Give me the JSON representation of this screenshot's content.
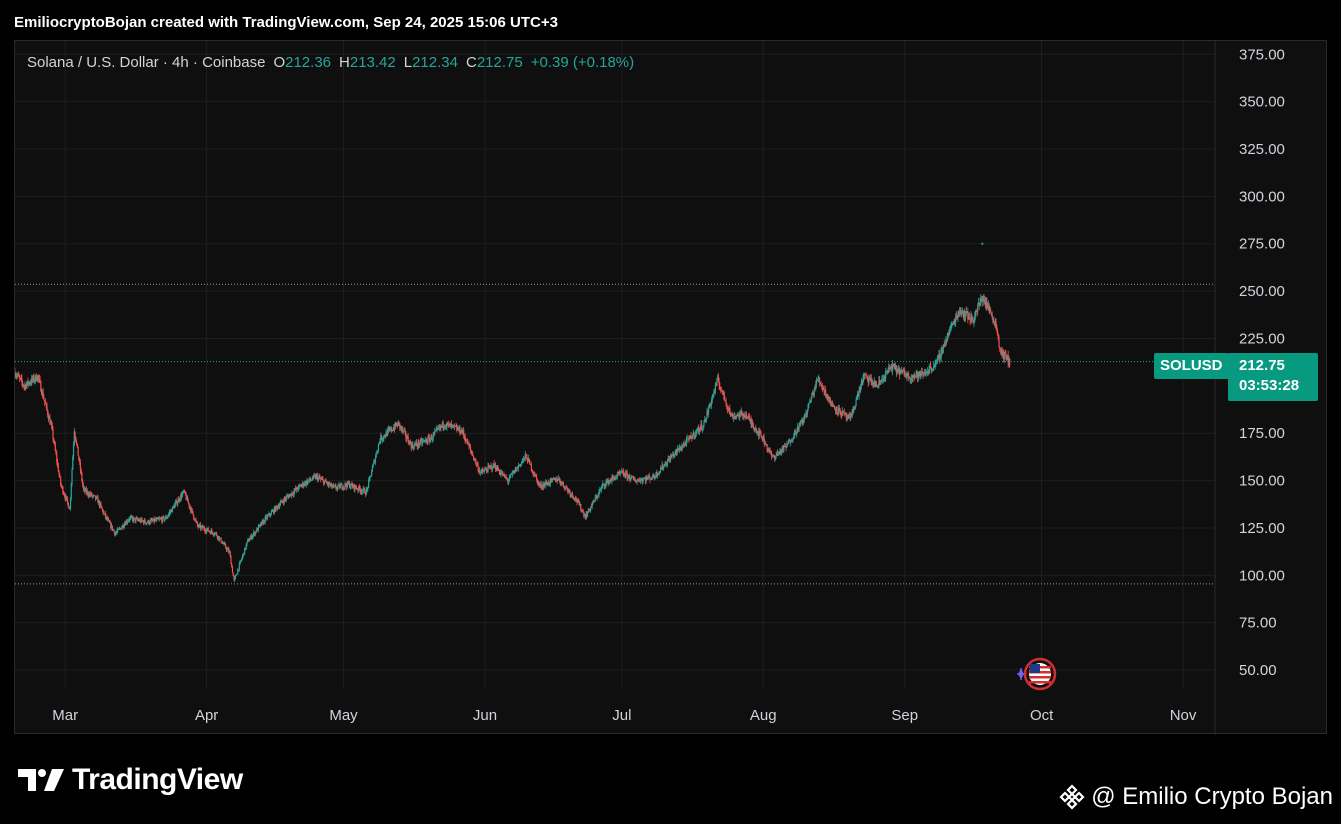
{
  "header": {
    "caption": "EmiliocryptoBojan created with TradingView.com, Sep 24, 2025 15:06 UTC+3"
  },
  "legend": {
    "symbol": "Solana / U.S. Dollar · 4h · Coinbase",
    "open_label": "O",
    "open": "212.36",
    "high_label": "H",
    "high": "213.42",
    "low_label": "L",
    "low": "212.34",
    "close_label": "C",
    "close": "212.75",
    "change": "+0.39 (+0.18%)"
  },
  "price_tag": {
    "symbol": "SOLUSD",
    "price": "212.75",
    "countdown": "03:53:28"
  },
  "footer": {
    "brand": "TradingView",
    "watermark": "@ Emilio Crypto Bojan"
  },
  "colors": {
    "up": "#26a69a",
    "down": "#ef5350",
    "background": "#0f0f0f",
    "grid": "#1e1e1e",
    "tag": "#089981"
  },
  "icons": {
    "brand_logo": "tradingview-logo-icon",
    "watermark_logo": "binance-logo-icon",
    "event": "us-flag-event-icon"
  },
  "chart_data": {
    "type": "candlestick",
    "interval": "4h",
    "ylim": [
      40,
      382
    ],
    "y_ticks": [
      "375.00",
      "350.00",
      "325.00",
      "300.00",
      "275.00",
      "250.00",
      "225.00",
      "175.00",
      "150.00",
      "125.00",
      "100.00",
      "75.00",
      "50.00"
    ],
    "x_ticks": [
      "Mar",
      "Apr",
      "May",
      "Jun",
      "Jul",
      "Aug",
      "Sep",
      "Oct",
      "Nov"
    ],
    "x_range": [
      "2025-02-18",
      "2025-11-08"
    ],
    "grid": true,
    "last_price": 212.75,
    "horizontal_lines": [
      253.6,
      95.5,
      212.75
    ],
    "approx_path": [
      [
        "2025-02-18",
        207
      ],
      [
        "2025-02-20",
        200
      ],
      [
        "2025-02-23",
        205
      ],
      [
        "2025-02-26",
        178
      ],
      [
        "2025-02-28",
        148
      ],
      [
        "2025-03-02",
        135
      ],
      [
        "2025-03-03",
        177
      ],
      [
        "2025-03-05",
        145
      ],
      [
        "2025-03-08",
        140
      ],
      [
        "2025-03-10",
        130
      ],
      [
        "2025-03-12",
        122
      ],
      [
        "2025-03-15",
        130
      ],
      [
        "2025-03-19",
        128
      ],
      [
        "2025-03-23",
        130
      ],
      [
        "2025-03-27",
        144
      ],
      [
        "2025-03-30",
        126
      ],
      [
        "2025-04-03",
        122
      ],
      [
        "2025-04-06",
        112
      ],
      [
        "2025-04-07",
        97
      ],
      [
        "2025-04-10",
        118
      ],
      [
        "2025-04-14",
        130
      ],
      [
        "2025-04-18",
        140
      ],
      [
        "2025-04-22",
        148
      ],
      [
        "2025-04-25",
        152
      ],
      [
        "2025-04-29",
        146
      ],
      [
        "2025-05-02",
        148
      ],
      [
        "2025-05-06",
        144
      ],
      [
        "2025-05-09",
        172
      ],
      [
        "2025-05-13",
        180
      ],
      [
        "2025-05-16",
        168
      ],
      [
        "2025-05-20",
        172
      ],
      [
        "2025-05-23",
        180
      ],
      [
        "2025-05-27",
        176
      ],
      [
        "2025-05-31",
        154
      ],
      [
        "2025-06-03",
        158
      ],
      [
        "2025-06-06",
        150
      ],
      [
        "2025-06-10",
        163
      ],
      [
        "2025-06-13",
        147
      ],
      [
        "2025-06-17",
        151
      ],
      [
        "2025-06-21",
        140
      ],
      [
        "2025-06-23",
        131
      ],
      [
        "2025-06-27",
        148
      ],
      [
        "2025-07-01",
        154
      ],
      [
        "2025-07-04",
        150
      ],
      [
        "2025-07-08",
        152
      ],
      [
        "2025-07-12",
        163
      ],
      [
        "2025-07-15",
        170
      ],
      [
        "2025-07-19",
        180
      ],
      [
        "2025-07-22",
        203
      ],
      [
        "2025-07-25",
        184
      ],
      [
        "2025-07-28",
        185
      ],
      [
        "2025-08-01",
        172
      ],
      [
        "2025-08-03",
        162
      ],
      [
        "2025-08-06",
        168
      ],
      [
        "2025-08-10",
        183
      ],
      [
        "2025-08-13",
        204
      ],
      [
        "2025-08-16",
        190
      ],
      [
        "2025-08-20",
        182
      ],
      [
        "2025-08-23",
        205
      ],
      [
        "2025-08-26",
        200
      ],
      [
        "2025-08-29",
        210
      ],
      [
        "2025-09-02",
        205
      ],
      [
        "2025-09-05",
        206
      ],
      [
        "2025-09-08",
        212
      ],
      [
        "2025-09-11",
        230
      ],
      [
        "2025-09-13",
        240
      ],
      [
        "2025-09-16",
        235
      ],
      [
        "2025-09-18",
        247
      ],
      [
        "2025-09-20",
        238
      ],
      [
        "2025-09-21",
        232
      ],
      [
        "2025-09-22",
        218
      ],
      [
        "2025-09-24",
        212.75
      ]
    ]
  }
}
